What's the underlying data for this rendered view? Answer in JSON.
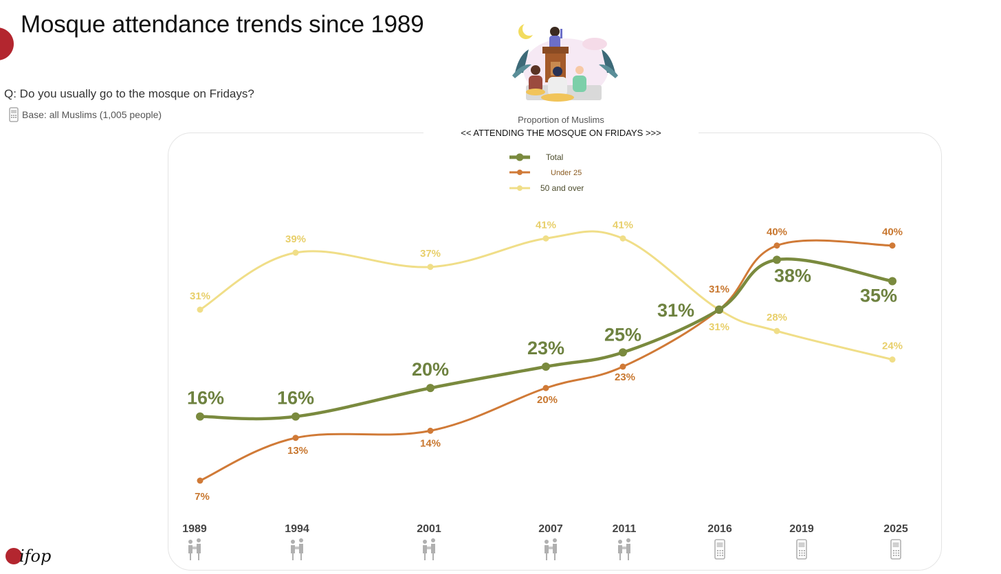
{
  "header": {
    "title": "Mosque attendance trends since 1989",
    "question": "Q: Do you usually go to the mosque on Fridays?",
    "base": "Base: all Muslims (1,005 people)",
    "subtitle_1": "Proportion of Muslims",
    "subtitle_2": "<< ATTENDING THE MOSQUE ON FRIDAYS >>>"
  },
  "logo": {
    "text": "ifop"
  },
  "colors": {
    "total": "#7a8a3e",
    "under25": "#d07a37",
    "over50": "#f0de88",
    "total_label": "#6e8240",
    "under25_label": "#c8772f",
    "over50_label": "#e8cf6a",
    "year": "#444444",
    "icon": "#b0b0b0"
  },
  "chart_data": {
    "type": "line",
    "title": "Proportion of Muslims << ATTENDING THE MOSQUE ON FRIDAYS >>>",
    "x": [
      1989,
      1994,
      2001,
      2007,
      2011,
      2016,
      2019,
      2025
    ],
    "x_labels": [
      "1989",
      "1994",
      "2001",
      "2007",
      "2011",
      "2016",
      "2019",
      "2025"
    ],
    "survey_mode": [
      "face-to-face",
      "face-to-face",
      "face-to-face",
      "face-to-face",
      "face-to-face",
      "phone",
      "phone",
      "phone"
    ],
    "unit": "%",
    "series": [
      {
        "key": "total",
        "name": "Total",
        "values": [
          16,
          16,
          20,
          23,
          25,
          31,
          38,
          35
        ],
        "labels": [
          "16%",
          "16%",
          "20%",
          "23%",
          "25%",
          "31%",
          "38%",
          "35%"
        ]
      },
      {
        "key": "under25",
        "name": "Under 25",
        "values": [
          7,
          13,
          14,
          20,
          23,
          31,
          40,
          40
        ],
        "labels": [
          "7%",
          "13%",
          "14%",
          "20%",
          "23%",
          "31%",
          "40%",
          "40%"
        ]
      },
      {
        "key": "over50",
        "name": "50 and over",
        "values": [
          31,
          39,
          37,
          41,
          41,
          31,
          28,
          24
        ],
        "labels": [
          "31%",
          "39%",
          "37%",
          "41%",
          "41%",
          "31%",
          "28%",
          "24%"
        ]
      }
    ],
    "xlabel": "",
    "ylabel": "",
    "grid": false,
    "legend_position": "top-center"
  }
}
